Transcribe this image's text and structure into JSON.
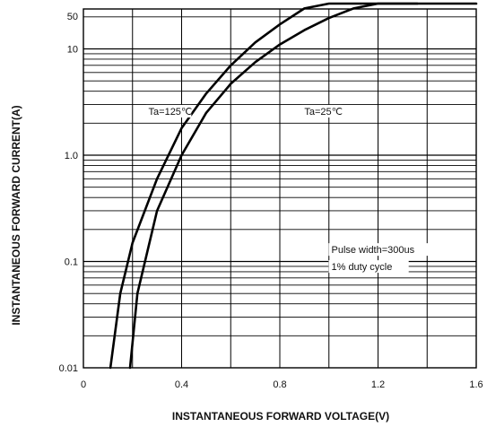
{
  "chart_data": {
    "type": "line",
    "xlabel": "INSTANTANEOUS FORWARD VOLTAGE(V)",
    "ylabel": "INSTANTANEOUS FORWARD CURRENT(A)",
    "xlim": [
      0,
      1.6
    ],
    "ylim": [
      0.01,
      50
    ],
    "yscale": "log",
    "grid": true,
    "x_ticks": [
      {
        "value": 0,
        "label": "0"
      },
      {
        "value": 0.4,
        "label": "0.4"
      },
      {
        "value": 0.8,
        "label": "0.8"
      },
      {
        "value": 1.2,
        "label": "1.2"
      },
      {
        "value": 1.6,
        "label": "1.6"
      }
    ],
    "y_ticks": [
      {
        "value": 0.01,
        "label": "0.01"
      },
      {
        "value": 0.1,
        "label": "0.1"
      },
      {
        "value": 1,
        "label": "1.0"
      },
      {
        "value": 10,
        "label": "10"
      },
      {
        "value": 50,
        "label": "50"
      }
    ],
    "series": [
      {
        "name": "Ta=125℃",
        "x": [
          0.11,
          0.15,
          0.2,
          0.3,
          0.4,
          0.5,
          0.6,
          0.7,
          0.8,
          0.9,
          1.0,
          1.1,
          1.2,
          1.3,
          1.36
        ],
        "y": [
          0.01,
          0.05,
          0.15,
          0.6,
          1.8,
          3.8,
          7.0,
          11.5,
          17.0,
          24.0,
          31.0,
          38.0,
          44.0,
          49.0,
          52.0
        ]
      },
      {
        "name": "Ta=25℃",
        "x": [
          0.19,
          0.22,
          0.3,
          0.4,
          0.5,
          0.6,
          0.7,
          0.8,
          0.9,
          1.0,
          1.1,
          1.2,
          1.3,
          1.4,
          1.5,
          1.6
        ],
        "y": [
          0.01,
          0.05,
          0.3,
          1.0,
          2.5,
          4.7,
          7.5,
          11.0,
          15.0,
          19.5,
          24.0,
          28.0,
          31.0,
          33.0,
          34.0,
          33.0
        ]
      }
    ],
    "annotations": [
      {
        "text": "Ta=125℃",
        "x": 0.265,
        "y": 2.4
      },
      {
        "text": "Ta=25℃",
        "x": 0.9,
        "y": 2.4
      },
      {
        "text": "Pulse width=300us",
        "x": 1.01,
        "y": 0.12
      },
      {
        "text": "1% duty cycle",
        "x": 1.01,
        "y": 0.083
      }
    ]
  }
}
